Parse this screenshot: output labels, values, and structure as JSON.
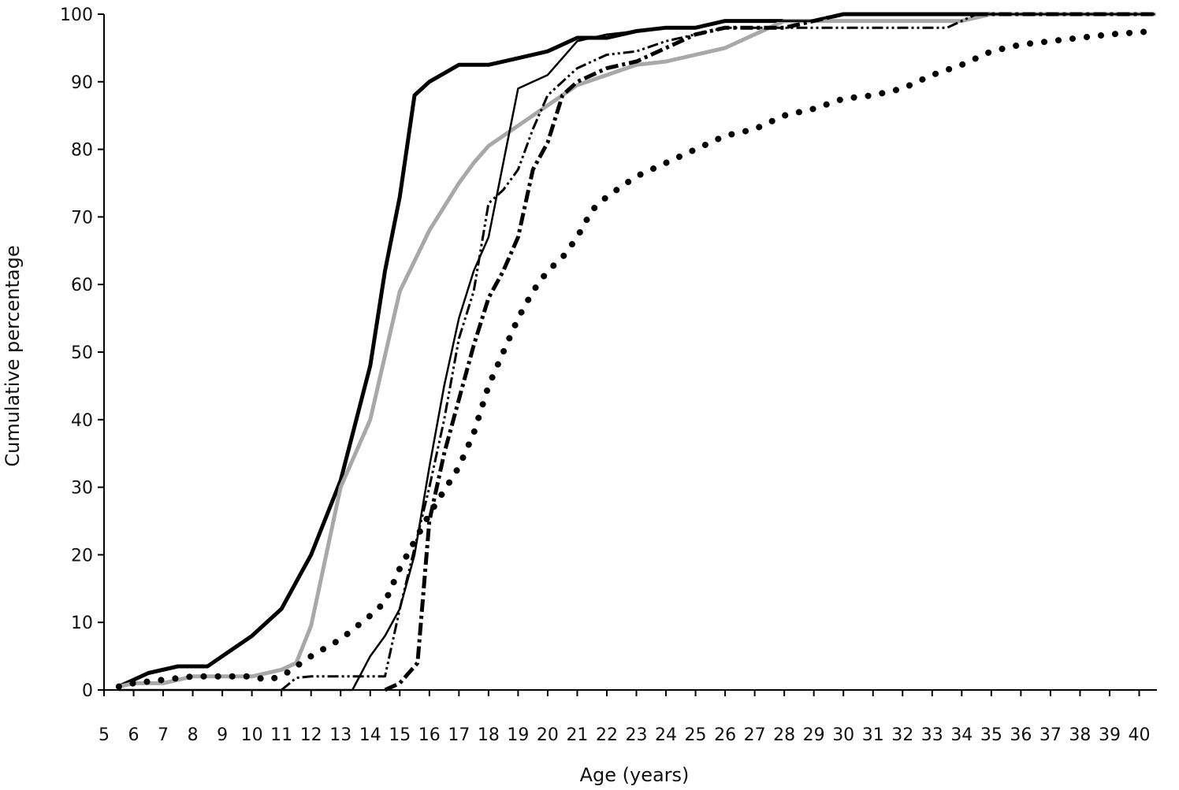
{
  "chart_data": {
    "type": "line",
    "title": "",
    "xlabel": "Age (years)",
    "ylabel": "Cumulative percentage",
    "xlim": [
      5,
      40
    ],
    "ylim": [
      0,
      100
    ],
    "x_ticks": [
      "5",
      "6",
      "7",
      "8",
      "9",
      "10",
      "11",
      "12",
      "13",
      "14",
      "15",
      "16",
      "17",
      "18",
      "19",
      "20",
      "21",
      "22",
      "23",
      "24",
      "25",
      "26",
      "27",
      "28",
      "29",
      "30",
      "31",
      "32",
      "33",
      "34",
      "35",
      "36",
      "37",
      "38",
      "39",
      "40"
    ],
    "y_ticks": [
      "0",
      "10",
      "20",
      "30",
      "40",
      "50",
      "60",
      "70",
      "80",
      "90",
      "100"
    ],
    "grid": false,
    "legend": "none",
    "series": [
      {
        "style": "solid-thick",
        "color": "#000000",
        "points": [
          [
            5.5,
            0.5
          ],
          [
            6,
            1.5
          ],
          [
            6.5,
            2.5
          ],
          [
            7.5,
            3.5
          ],
          [
            8.5,
            3.5
          ],
          [
            9,
            5
          ],
          [
            10,
            8
          ],
          [
            11,
            12
          ],
          [
            12,
            20
          ],
          [
            13,
            31
          ],
          [
            14,
            48
          ],
          [
            14.5,
            62
          ],
          [
            15,
            73
          ],
          [
            15.5,
            88
          ],
          [
            16,
            90
          ],
          [
            17,
            92.5
          ],
          [
            18,
            92.5
          ],
          [
            19,
            93.5
          ],
          [
            20,
            94.5
          ],
          [
            21,
            96.5
          ],
          [
            22,
            96.5
          ],
          [
            23,
            97.5
          ],
          [
            24,
            98
          ],
          [
            25,
            98
          ],
          [
            26,
            99
          ],
          [
            27,
            99
          ],
          [
            28,
            99
          ],
          [
            29,
            99
          ],
          [
            30,
            100
          ],
          [
            31,
            100
          ],
          [
            32,
            100
          ],
          [
            33,
            100
          ],
          [
            34,
            100
          ],
          [
            35,
            100
          ],
          [
            36,
            100
          ],
          [
            37,
            100
          ],
          [
            38,
            100
          ],
          [
            39,
            100
          ],
          [
            40.5,
            100
          ]
        ]
      },
      {
        "style": "solid-gray-thick",
        "color": "#a8a8a8",
        "points": [
          [
            5.5,
            0.5
          ],
          [
            6,
            1
          ],
          [
            7,
            1
          ],
          [
            8,
            2
          ],
          [
            9,
            2
          ],
          [
            10,
            2
          ],
          [
            11,
            3
          ],
          [
            11.5,
            4
          ],
          [
            12,
            9.5
          ],
          [
            13,
            30
          ],
          [
            14,
            40
          ],
          [
            15,
            59
          ],
          [
            16,
            68
          ],
          [
            17,
            75
          ],
          [
            17.5,
            78
          ],
          [
            18,
            80.5
          ],
          [
            19,
            83.5
          ],
          [
            20,
            86.5
          ],
          [
            21,
            89.5
          ],
          [
            22,
            91
          ],
          [
            23,
            92.5
          ],
          [
            24,
            93
          ],
          [
            25,
            94
          ],
          [
            26,
            95
          ],
          [
            27,
            97
          ],
          [
            28,
            99
          ],
          [
            29,
            99
          ],
          [
            30,
            99
          ],
          [
            31,
            99
          ],
          [
            32,
            99
          ],
          [
            33,
            99
          ],
          [
            34,
            99
          ],
          [
            35,
            100
          ],
          [
            36,
            100
          ],
          [
            37,
            100
          ],
          [
            38,
            100
          ],
          [
            39,
            100
          ],
          [
            40.5,
            100
          ]
        ]
      },
      {
        "style": "solid-thin",
        "color": "#000000",
        "points": [
          [
            5.5,
            0
          ],
          [
            13.4,
            0
          ],
          [
            14,
            5
          ],
          [
            14.5,
            8
          ],
          [
            15,
            12
          ],
          [
            15.5,
            20
          ],
          [
            16,
            33
          ],
          [
            16.5,
            45
          ],
          [
            17,
            55
          ],
          [
            17.5,
            62
          ],
          [
            18,
            67
          ],
          [
            18.5,
            78
          ],
          [
            19,
            89
          ],
          [
            19.5,
            90
          ],
          [
            20,
            91
          ],
          [
            21,
            96
          ],
          [
            22,
            97
          ],
          [
            23,
            97.5
          ],
          [
            24,
            98
          ],
          [
            25,
            98
          ],
          [
            26,
            99
          ],
          [
            27,
            99
          ],
          [
            28,
            99
          ],
          [
            29,
            99
          ],
          [
            30,
            100
          ],
          [
            31,
            100
          ],
          [
            32,
            100
          ],
          [
            33,
            100
          ],
          [
            34,
            100
          ],
          [
            35,
            100
          ],
          [
            36,
            100
          ],
          [
            37,
            100
          ],
          [
            38,
            100
          ],
          [
            39,
            100
          ],
          [
            40.5,
            100
          ]
        ]
      },
      {
        "style": "dash-dot-dot",
        "color": "#000000",
        "points": [
          [
            11,
            0
          ],
          [
            11.5,
            1.8
          ],
          [
            12,
            2
          ],
          [
            14,
            2
          ],
          [
            14.5,
            2
          ],
          [
            15,
            12
          ],
          [
            16,
            30
          ],
          [
            16.5,
            40
          ],
          [
            17,
            52
          ],
          [
            17.5,
            59
          ],
          [
            18,
            72
          ],
          [
            18.5,
            74
          ],
          [
            19,
            77
          ],
          [
            19.5,
            83
          ],
          [
            20,
            88
          ],
          [
            21,
            92
          ],
          [
            22,
            94
          ],
          [
            23,
            94.5
          ],
          [
            24,
            96
          ],
          [
            25,
            97
          ],
          [
            26,
            98
          ],
          [
            27,
            98
          ],
          [
            28,
            98
          ],
          [
            29,
            98
          ],
          [
            30,
            98
          ],
          [
            31,
            98
          ],
          [
            32,
            98
          ],
          [
            33,
            98
          ],
          [
            33.5,
            98
          ],
          [
            34,
            99
          ],
          [
            34.5,
            100
          ],
          [
            35,
            100
          ],
          [
            36,
            100
          ],
          [
            37,
            100
          ],
          [
            38,
            100
          ],
          [
            39,
            100
          ],
          [
            40.5,
            100
          ]
        ]
      },
      {
        "style": "dash-dot-thick",
        "color": "#000000",
        "points": [
          [
            14.5,
            0
          ],
          [
            15,
            1
          ],
          [
            15.6,
            4
          ],
          [
            16,
            25
          ],
          [
            16.5,
            35
          ],
          [
            17,
            43
          ],
          [
            17.5,
            51
          ],
          [
            18,
            58
          ],
          [
            18.5,
            62
          ],
          [
            19,
            67
          ],
          [
            19.5,
            77
          ],
          [
            20,
            81
          ],
          [
            20.5,
            88
          ],
          [
            21,
            90
          ],
          [
            22,
            92
          ],
          [
            23,
            93
          ],
          [
            24,
            95
          ],
          [
            25,
            97
          ],
          [
            26,
            98
          ],
          [
            27,
            98
          ],
          [
            28,
            98
          ],
          [
            29,
            99
          ],
          [
            30,
            100
          ],
          [
            31,
            100
          ],
          [
            32,
            100
          ],
          [
            33,
            100
          ],
          [
            34,
            100
          ],
          [
            35,
            100
          ],
          [
            36,
            100
          ],
          [
            37,
            100
          ],
          [
            38,
            100
          ],
          [
            39,
            100
          ],
          [
            40.5,
            100
          ]
        ]
      },
      {
        "style": "dotted",
        "color": "#000000",
        "points": [
          [
            5.5,
            0.5
          ],
          [
            6,
            1
          ],
          [
            7,
            1.5
          ],
          [
            8,
            2
          ],
          [
            9,
            2
          ],
          [
            10,
            2
          ],
          [
            10.5,
            1.5
          ],
          [
            11,
            2
          ],
          [
            11.5,
            3.5
          ],
          [
            12,
            5
          ],
          [
            13,
            7.5
          ],
          [
            14,
            11
          ],
          [
            14.5,
            13
          ],
          [
            15,
            18
          ],
          [
            15.5,
            22
          ],
          [
            16,
            26
          ],
          [
            17,
            33
          ],
          [
            17.5,
            38
          ],
          [
            18,
            45
          ],
          [
            18.5,
            50
          ],
          [
            19,
            55
          ],
          [
            19.5,
            59
          ],
          [
            20,
            62
          ],
          [
            20.5,
            64
          ],
          [
            21,
            67
          ],
          [
            21.5,
            71
          ],
          [
            22,
            73
          ],
          [
            23,
            76
          ],
          [
            24,
            78
          ],
          [
            25,
            80
          ],
          [
            26,
            82
          ],
          [
            27,
            83
          ],
          [
            28,
            85
          ],
          [
            29,
            86
          ],
          [
            30,
            87.5
          ],
          [
            31,
            88
          ],
          [
            32,
            89
          ],
          [
            33,
            91
          ],
          [
            34,
            92.5
          ],
          [
            35,
            94.5
          ],
          [
            36,
            95.5
          ],
          [
            37,
            96
          ],
          [
            38,
            96.5
          ],
          [
            39,
            97
          ],
          [
            40.5,
            97.5
          ]
        ]
      }
    ]
  }
}
